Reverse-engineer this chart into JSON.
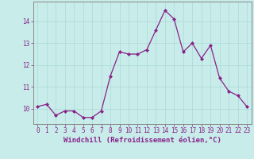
{
  "x": [
    0,
    1,
    2,
    3,
    4,
    5,
    6,
    7,
    8,
    9,
    10,
    11,
    12,
    13,
    14,
    15,
    16,
    17,
    18,
    19,
    20,
    21,
    22,
    23
  ],
  "y": [
    10.1,
    10.2,
    9.7,
    9.9,
    9.9,
    9.6,
    9.6,
    9.9,
    11.5,
    12.6,
    12.5,
    12.5,
    12.7,
    13.6,
    14.5,
    14.1,
    12.6,
    13.0,
    12.3,
    12.9,
    11.4,
    10.8,
    10.6,
    10.1
  ],
  "line_color": "#882288",
  "marker_color": "#882288",
  "bg_color": "#c8ecea",
  "grid_color": "#aad8d6",
  "xlabel": "Windchill (Refroidissement éolien,°C)",
  "xlabel_color": "#882288",
  "tick_color": "#882288",
  "spine_color": "#888888",
  "ylim": [
    9.3,
    14.9
  ],
  "yticks": [
    10,
    11,
    12,
    13,
    14
  ],
  "xticks": [
    0,
    1,
    2,
    3,
    4,
    5,
    6,
    7,
    8,
    9,
    10,
    11,
    12,
    13,
    14,
    15,
    16,
    17,
    18,
    19,
    20,
    21,
    22,
    23
  ],
  "font": "monospace",
  "tick_fontsize": 5.5,
  "xlabel_fontsize": 6.5
}
